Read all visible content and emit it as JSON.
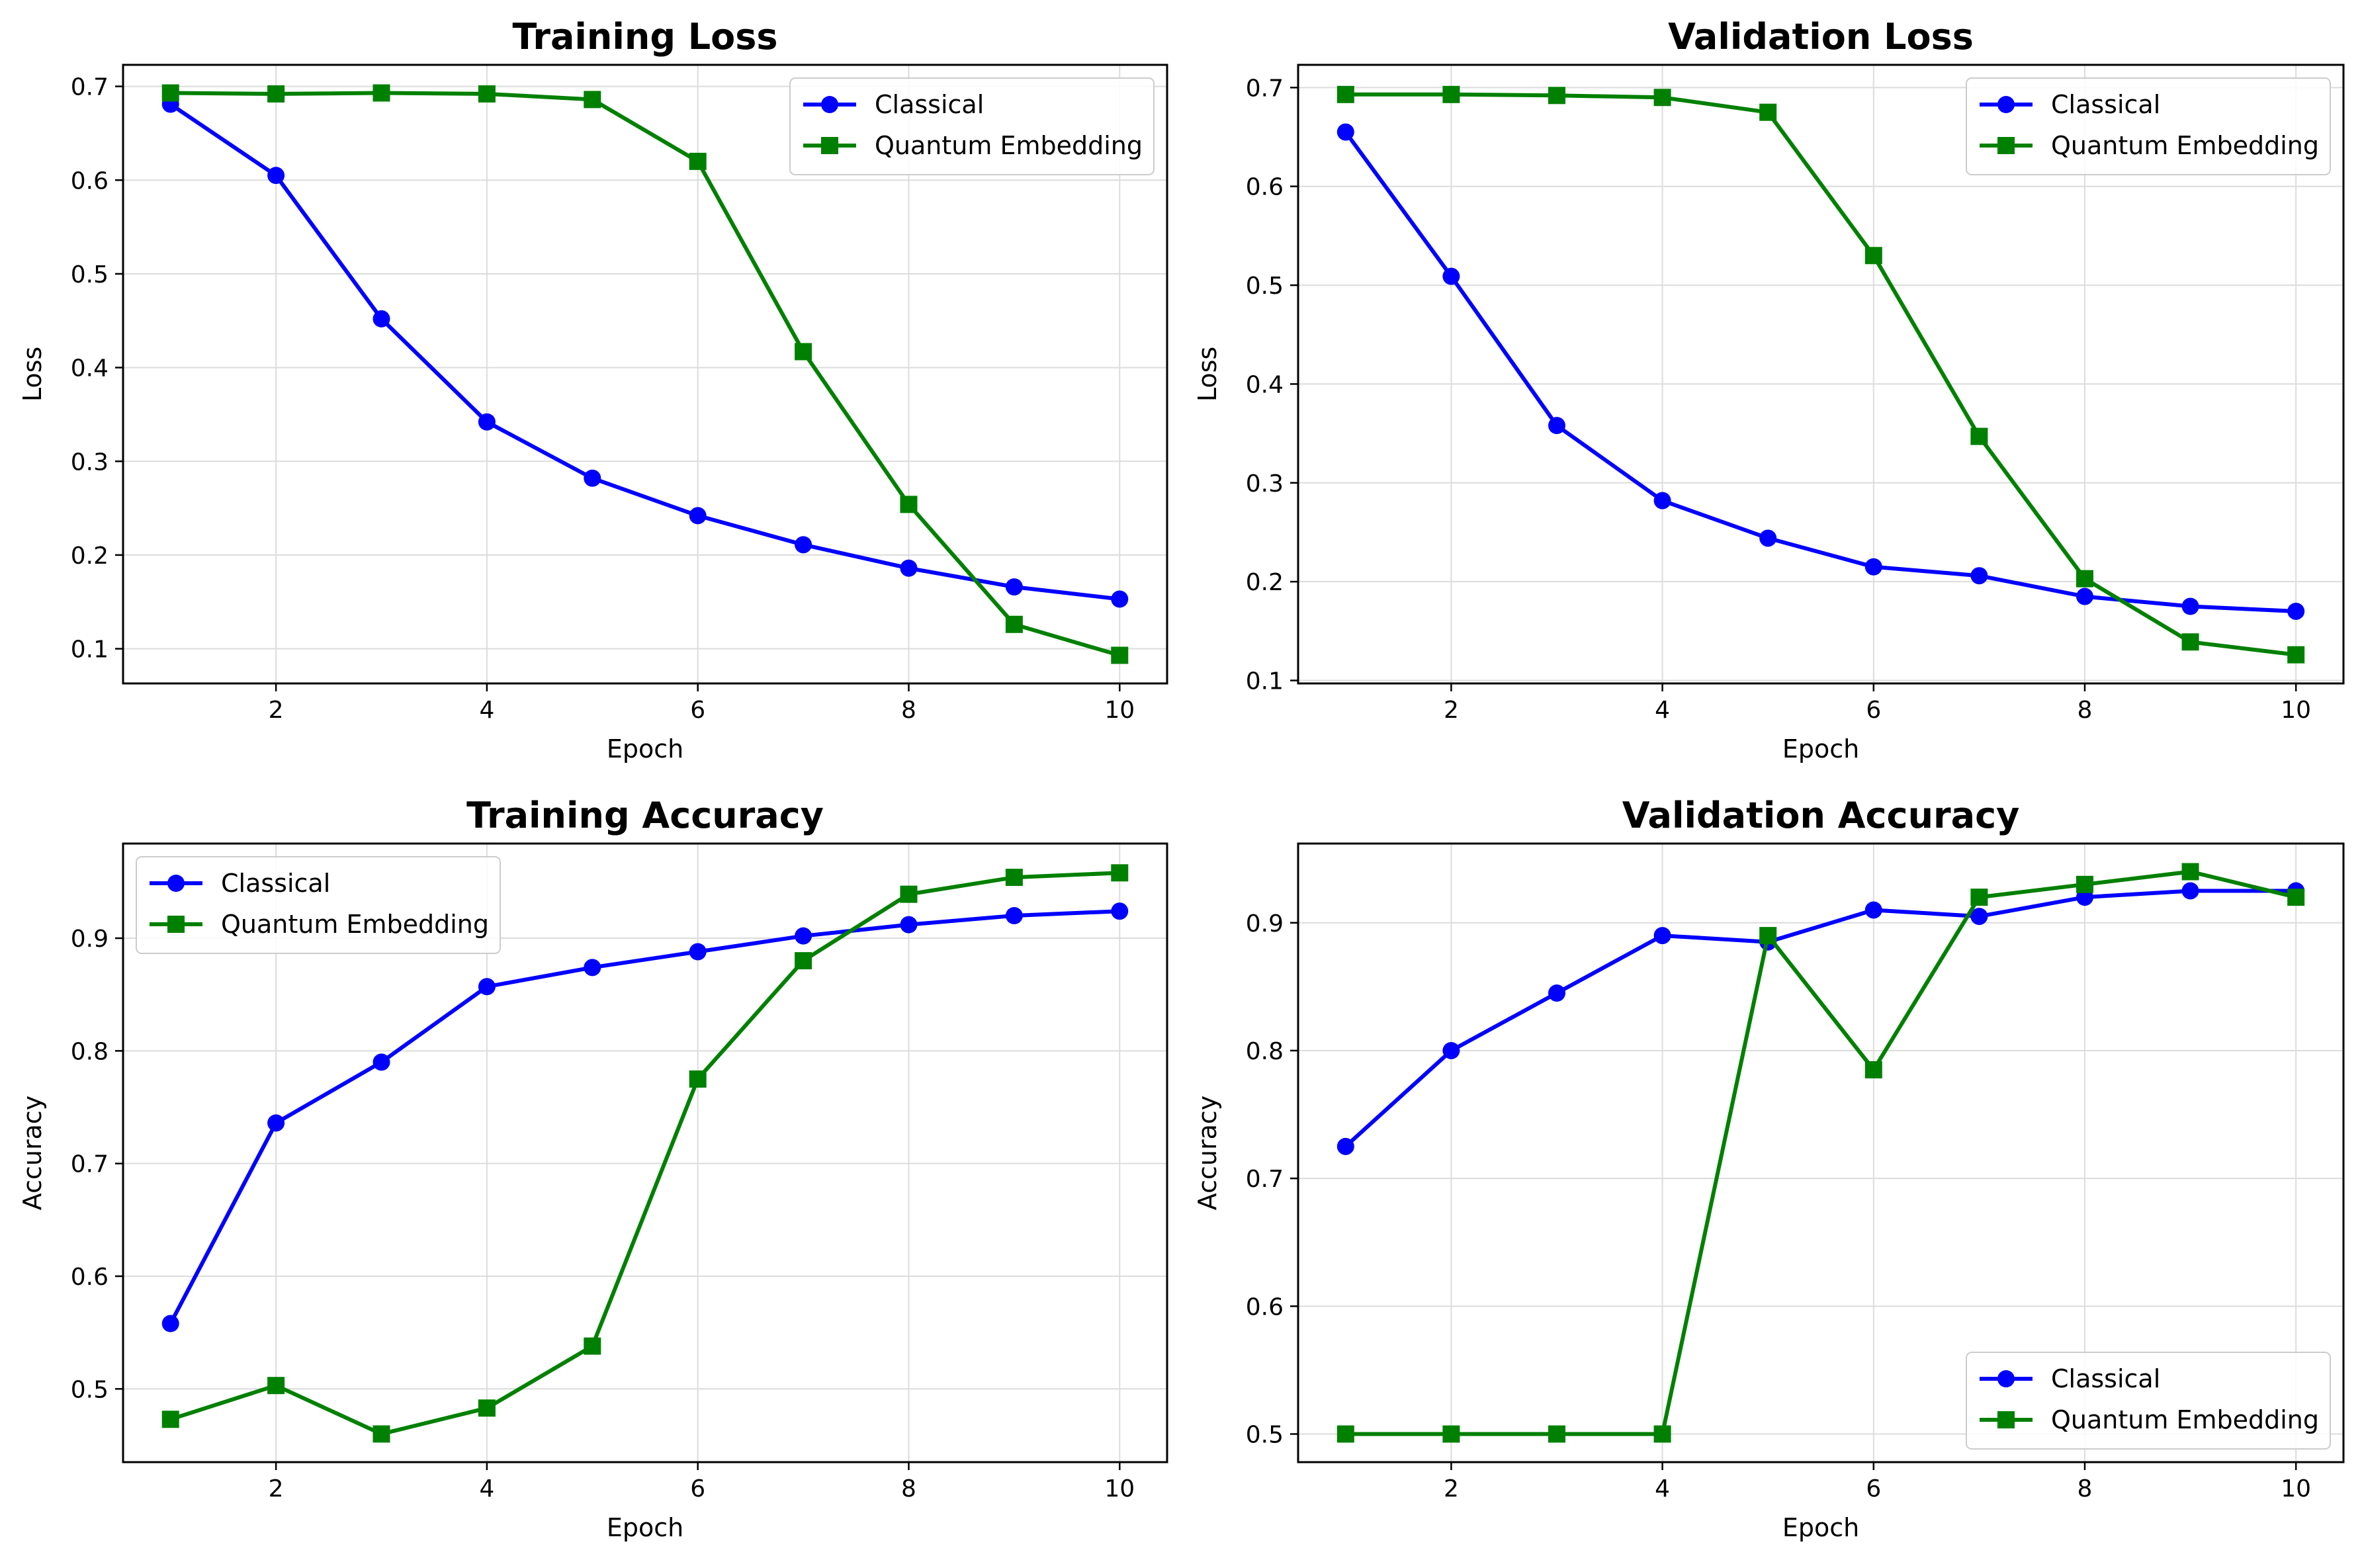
{
  "chart_data": [
    {
      "type": "line",
      "title": "Training Loss",
      "xlabel": "Epoch",
      "ylabel": "Loss",
      "xlim": [
        0.55,
        10.45
      ],
      "ylim": [
        0.063,
        0.723
      ],
      "xticks": [
        2,
        4,
        6,
        8,
        10
      ],
      "yticks": [
        0.1,
        0.2,
        0.3,
        0.4,
        0.5,
        0.6,
        0.7
      ],
      "grid": true,
      "legend_position": "upper right",
      "x": [
        1,
        2,
        3,
        4,
        5,
        6,
        7,
        8,
        9,
        10
      ],
      "series": [
        {
          "name": "Classical",
          "color": "#0000ff",
          "marker": "circle",
          "values": [
            0.681,
            0.605,
            0.452,
            0.342,
            0.282,
            0.242,
            0.211,
            0.186,
            0.166,
            0.153
          ]
        },
        {
          "name": "Quantum Embedding",
          "color": "#008000",
          "marker": "square",
          "values": [
            0.693,
            0.692,
            0.693,
            0.692,
            0.686,
            0.62,
            0.417,
            0.254,
            0.126,
            0.093
          ]
        }
      ]
    },
    {
      "type": "line",
      "title": "Validation Loss",
      "xlabel": "Epoch",
      "ylabel": "Loss",
      "xlim": [
        0.55,
        10.45
      ],
      "ylim": [
        0.097,
        0.723
      ],
      "xticks": [
        2,
        4,
        6,
        8,
        10
      ],
      "yticks": [
        0.1,
        0.2,
        0.3,
        0.4,
        0.5,
        0.6,
        0.7
      ],
      "grid": true,
      "legend_position": "upper right",
      "x": [
        1,
        2,
        3,
        4,
        5,
        6,
        7,
        8,
        9,
        10
      ],
      "series": [
        {
          "name": "Classical",
          "color": "#0000ff",
          "marker": "circle",
          "values": [
            0.655,
            0.509,
            0.358,
            0.282,
            0.244,
            0.215,
            0.206,
            0.185,
            0.175,
            0.17
          ]
        },
        {
          "name": "Quantum Embedding",
          "color": "#008000",
          "marker": "square",
          "values": [
            0.693,
            0.693,
            0.692,
            0.69,
            0.675,
            0.53,
            0.347,
            0.203,
            0.139,
            0.126
          ]
        }
      ]
    },
    {
      "type": "line",
      "title": "Training Accuracy",
      "xlabel": "Epoch",
      "ylabel": "Accuracy",
      "xlim": [
        0.55,
        10.45
      ],
      "ylim": [
        0.435,
        0.984
      ],
      "xticks": [
        2,
        4,
        6,
        8,
        10
      ],
      "yticks": [
        0.5,
        0.6,
        0.7,
        0.8,
        0.9
      ],
      "grid": true,
      "legend_position": "upper left",
      "x": [
        1,
        2,
        3,
        4,
        5,
        6,
        7,
        8,
        9,
        10
      ],
      "series": [
        {
          "name": "Classical",
          "color": "#0000ff",
          "marker": "circle",
          "values": [
            0.558,
            0.736,
            0.79,
            0.857,
            0.874,
            0.888,
            0.902,
            0.912,
            0.92,
            0.924
          ]
        },
        {
          "name": "Quantum Embedding",
          "color": "#008000",
          "marker": "square",
          "values": [
            0.473,
            0.503,
            0.46,
            0.483,
            0.538,
            0.775,
            0.88,
            0.939,
            0.954,
            0.958
          ]
        }
      ]
    },
    {
      "type": "line",
      "title": "Validation Accuracy",
      "xlabel": "Epoch",
      "ylabel": "Accuracy",
      "xlim": [
        0.55,
        10.45
      ],
      "ylim": [
        0.478,
        0.962
      ],
      "xticks": [
        2,
        4,
        6,
        8,
        10
      ],
      "yticks": [
        0.5,
        0.6,
        0.7,
        0.8,
        0.9
      ],
      "grid": true,
      "legend_position": "lower right",
      "x": [
        1,
        2,
        3,
        4,
        5,
        6,
        7,
        8,
        9,
        10
      ],
      "series": [
        {
          "name": "Classical",
          "color": "#0000ff",
          "marker": "circle",
          "values": [
            0.725,
            0.8,
            0.845,
            0.89,
            0.885,
            0.91,
            0.905,
            0.92,
            0.925,
            0.925
          ]
        },
        {
          "name": "Quantum Embedding",
          "color": "#008000",
          "marker": "square",
          "values": [
            0.5,
            0.5,
            0.5,
            0.5,
            0.89,
            0.785,
            0.92,
            0.93,
            0.94,
            0.92
          ]
        }
      ]
    }
  ]
}
